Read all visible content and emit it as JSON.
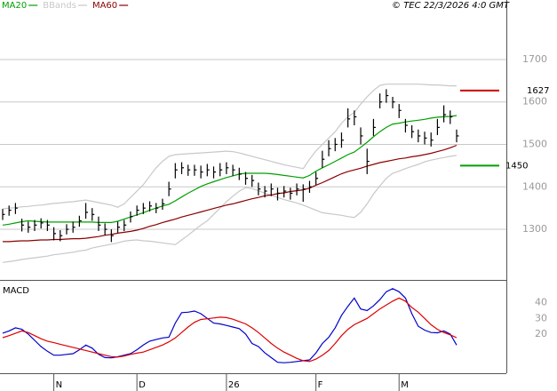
{
  "chart_data": [
    {
      "type": "ohlc",
      "source": "© TEC 22/3/2026 4:0 GMT",
      "bar_color": "#000000",
      "high": [
        1348,
        1356,
        1362,
        1325,
        1318,
        1322,
        1326,
        1322,
        1305,
        1298,
        1312,
        1318,
        1332,
        1362,
        1350,
        1330,
        1314,
        1300,
        1318,
        1322,
        1342,
        1356,
        1362,
        1366,
        1362,
        1372,
        1412,
        1456,
        1458,
        1452,
        1452,
        1450,
        1454,
        1448,
        1456,
        1458,
        1452,
        1445,
        1435,
        1428,
        1410,
        1402,
        1408,
        1398,
        1402,
        1398,
        1408,
        1406,
        1414,
        1435,
        1485,
        1510,
        1515,
        1528,
        1585,
        1580,
        1540,
        1490,
        1560,
        1620,
        1630,
        1612,
        1595,
        1560,
        1545,
        1535,
        1530,
        1528,
        1560,
        1592,
        1580,
        1535
      ],
      "low": [
        1322,
        1332,
        1336,
        1295,
        1292,
        1296,
        1302,
        1296,
        1274,
        1272,
        1288,
        1292,
        1306,
        1325,
        1320,
        1296,
        1286,
        1270,
        1292,
        1296,
        1316,
        1332,
        1336,
        1342,
        1338,
        1346,
        1378,
        1420,
        1430,
        1426,
        1426,
        1420,
        1425,
        1420,
        1425,
        1430,
        1426,
        1416,
        1405,
        1400,
        1380,
        1375,
        1378,
        1368,
        1375,
        1370,
        1380,
        1365,
        1386,
        1405,
        1445,
        1472,
        1484,
        1492,
        1540,
        1545,
        1500,
        1430,
        1520,
        1585,
        1598,
        1585,
        1562,
        1528,
        1515,
        1505,
        1500,
        1495,
        1522,
        1552,
        1548,
        1505
      ],
      "close": [
        1335,
        1345,
        1350,
        1310,
        1305,
        1310,
        1315,
        1310,
        1290,
        1285,
        1300,
        1305,
        1320,
        1340,
        1335,
        1310,
        1300,
        1285,
        1305,
        1310,
        1330,
        1345,
        1350,
        1355,
        1350,
        1360,
        1395,
        1440,
        1445,
        1440,
        1440,
        1435,
        1440,
        1435,
        1440,
        1445,
        1440,
        1430,
        1420,
        1415,
        1395,
        1390,
        1395,
        1385,
        1390,
        1385,
        1395,
        1395,
        1400,
        1420,
        1465,
        1490,
        1500,
        1510,
        1560,
        1565,
        1520,
        1460,
        1540,
        1600,
        1615,
        1600,
        1580,
        1545,
        1530,
        1520,
        1515,
        1510,
        1540,
        1570,
        1565,
        1520
      ],
      "series": [
        {
          "name": "MA20",
          "color": "#00a000",
          "values": [
            1310,
            1312,
            1315,
            1318,
            1320,
            1319,
            1318,
            1317,
            1317,
            1317,
            1317,
            1317,
            1317,
            1317,
            1317,
            1316,
            1316,
            1316,
            1319,
            1324,
            1329,
            1334,
            1339,
            1345,
            1350,
            1355,
            1359,
            1367,
            1376,
            1385,
            1393,
            1401,
            1407,
            1412,
            1417,
            1422,
            1426,
            1430,
            1432,
            1432,
            1432,
            1432,
            1431,
            1429,
            1427,
            1425,
            1423,
            1421,
            1427,
            1437,
            1445,
            1452,
            1460,
            1468,
            1476,
            1482,
            1493,
            1505,
            1518,
            1530,
            1540,
            1548,
            1550,
            1553,
            1555,
            1557,
            1559,
            1562,
            1564,
            1565,
            1566,
            1568
          ]
        },
        {
          "name": "BBands",
          "color": "#c8c8c8",
          "upper": [
            1348,
            1350,
            1351,
            1353,
            1354,
            1356,
            1357,
            1359,
            1361,
            1362,
            1364,
            1365,
            1367,
            1369,
            1366,
            1363,
            1360,
            1357,
            1352,
            1360,
            1375,
            1390,
            1405,
            1425,
            1445,
            1460,
            1472,
            1476,
            1477,
            1478,
            1479,
            1480,
            1481,
            1482,
            1483,
            1484,
            1483,
            1480,
            1476,
            1472,
            1468,
            1464,
            1460,
            1456,
            1452,
            1449,
            1446,
            1443,
            1465,
            1485,
            1500,
            1515,
            1530,
            1550,
            1565,
            1575,
            1595,
            1612,
            1627,
            1639,
            1642,
            1642,
            1642,
            1642,
            1642,
            1642,
            1641,
            1640,
            1640,
            1639,
            1638,
            1638
          ],
          "lower": [
            1222,
            1224,
            1226,
            1229,
            1231,
            1233,
            1235,
            1237,
            1240,
            1242,
            1244,
            1246,
            1249,
            1251,
            1256,
            1259,
            1262,
            1265,
            1268,
            1272,
            1274,
            1275,
            1273,
            1272,
            1270,
            1268,
            1266,
            1264,
            1275,
            1286,
            1298,
            1310,
            1320,
            1335,
            1350,
            1365,
            1378,
            1390,
            1398,
            1396,
            1391,
            1385,
            1380,
            1375,
            1370,
            1366,
            1362,
            1357,
            1351,
            1345,
            1339,
            1337,
            1335,
            1333,
            1330,
            1328,
            1340,
            1360,
            1383,
            1402,
            1420,
            1432,
            1437,
            1443,
            1448,
            1453,
            1459,
            1463,
            1466,
            1469,
            1472,
            1474
          ]
        },
        {
          "name": "MA60",
          "color": "#8b0000",
          "values": [
            1271,
            1271,
            1272,
            1273,
            1273,
            1274,
            1275,
            1275,
            1276,
            1276,
            1277,
            1278,
            1278,
            1279,
            1281,
            1283,
            1286,
            1288,
            1291,
            1293,
            1295,
            1298,
            1302,
            1307,
            1311,
            1316,
            1320,
            1324,
            1329,
            1333,
            1337,
            1341,
            1345,
            1349,
            1353,
            1357,
            1360,
            1364,
            1368,
            1372,
            1375,
            1379,
            1381,
            1384,
            1386,
            1389,
            1391,
            1393,
            1397,
            1404,
            1410,
            1417,
            1424,
            1431,
            1436,
            1440,
            1444,
            1449,
            1453,
            1457,
            1460,
            1463,
            1466,
            1468,
            1471,
            1473,
            1476,
            1479,
            1483,
            1487,
            1492,
            1498
          ]
        }
      ],
      "markers": [
        {
          "value": 1627,
          "color": "#cc0000"
        },
        {
          "value": 1450,
          "color": "#00a000"
        }
      ],
      "ylim": [
        1185,
        1815
      ],
      "yticks": [
        1300,
        1400,
        1500,
        1600,
        1700
      ],
      "grid": true
    },
    {
      "type": "line",
      "title": "MACD",
      "categories": [
        null,
        null,
        null,
        null,
        null,
        null,
        null,
        null,
        "N",
        null,
        null,
        null,
        null,
        null,
        null,
        null,
        null,
        null,
        null,
        null,
        null,
        "D",
        null,
        null,
        null,
        null,
        null,
        null,
        null,
        null,
        null,
        null,
        null,
        null,
        null,
        "26",
        null,
        null,
        null,
        null,
        null,
        null,
        null,
        null,
        null,
        null,
        null,
        null,
        null,
        "F",
        null,
        null,
        null,
        null,
        null,
        null,
        null,
        null,
        null,
        null,
        null,
        null,
        "M",
        null,
        null,
        null,
        null,
        null,
        null,
        null,
        null,
        null
      ],
      "series": [
        {
          "color": "#0000cc",
          "values": [
            20.6,
            22,
            24,
            23,
            20,
            16,
            12,
            9,
            6.5,
            6.5,
            7,
            7.5,
            10,
            13,
            11,
            7,
            5,
            4.8,
            5.5,
            6.5,
            7.5,
            10,
            13,
            15.5,
            16.5,
            17.5,
            18,
            27,
            33.7,
            34,
            34.7,
            33,
            30,
            27,
            26.5,
            25.5,
            24.5,
            23.5,
            20,
            14,
            12,
            8,
            5,
            2,
            1.7,
            2,
            2.5,
            3,
            3.5,
            8,
            14,
            18,
            24,
            32,
            37.7,
            43,
            36,
            35,
            38,
            42,
            47,
            49,
            47,
            43,
            33,
            25,
            22.5,
            21,
            20.8,
            22,
            20,
            13
          ]
        },
        {
          "color": "#dd0000",
          "values": [
            17.7,
            19,
            20.5,
            22,
            21,
            19,
            17,
            15.5,
            14.5,
            13.5,
            12.5,
            11.5,
            10.5,
            9.5,
            8.5,
            7.5,
            6.5,
            5.6,
            5.3,
            6,
            7,
            7.8,
            8.5,
            10,
            11.5,
            13,
            15,
            17.5,
            21,
            24.5,
            27.5,
            29.3,
            29.8,
            30.3,
            30.8,
            30.5,
            29.5,
            28,
            26.5,
            24,
            21,
            17.5,
            14,
            11,
            8.5,
            6.5,
            4.5,
            3,
            2.5,
            4,
            6.5,
            9.5,
            14,
            19,
            23,
            26,
            28,
            30,
            33,
            36,
            38.5,
            41,
            43,
            41,
            37,
            34,
            30,
            26,
            23,
            21,
            19.5,
            17.7
          ]
        }
      ],
      "ylim": [
        -5,
        54
      ],
      "yticks": [
        20,
        30,
        40
      ],
      "grid": false
    }
  ]
}
